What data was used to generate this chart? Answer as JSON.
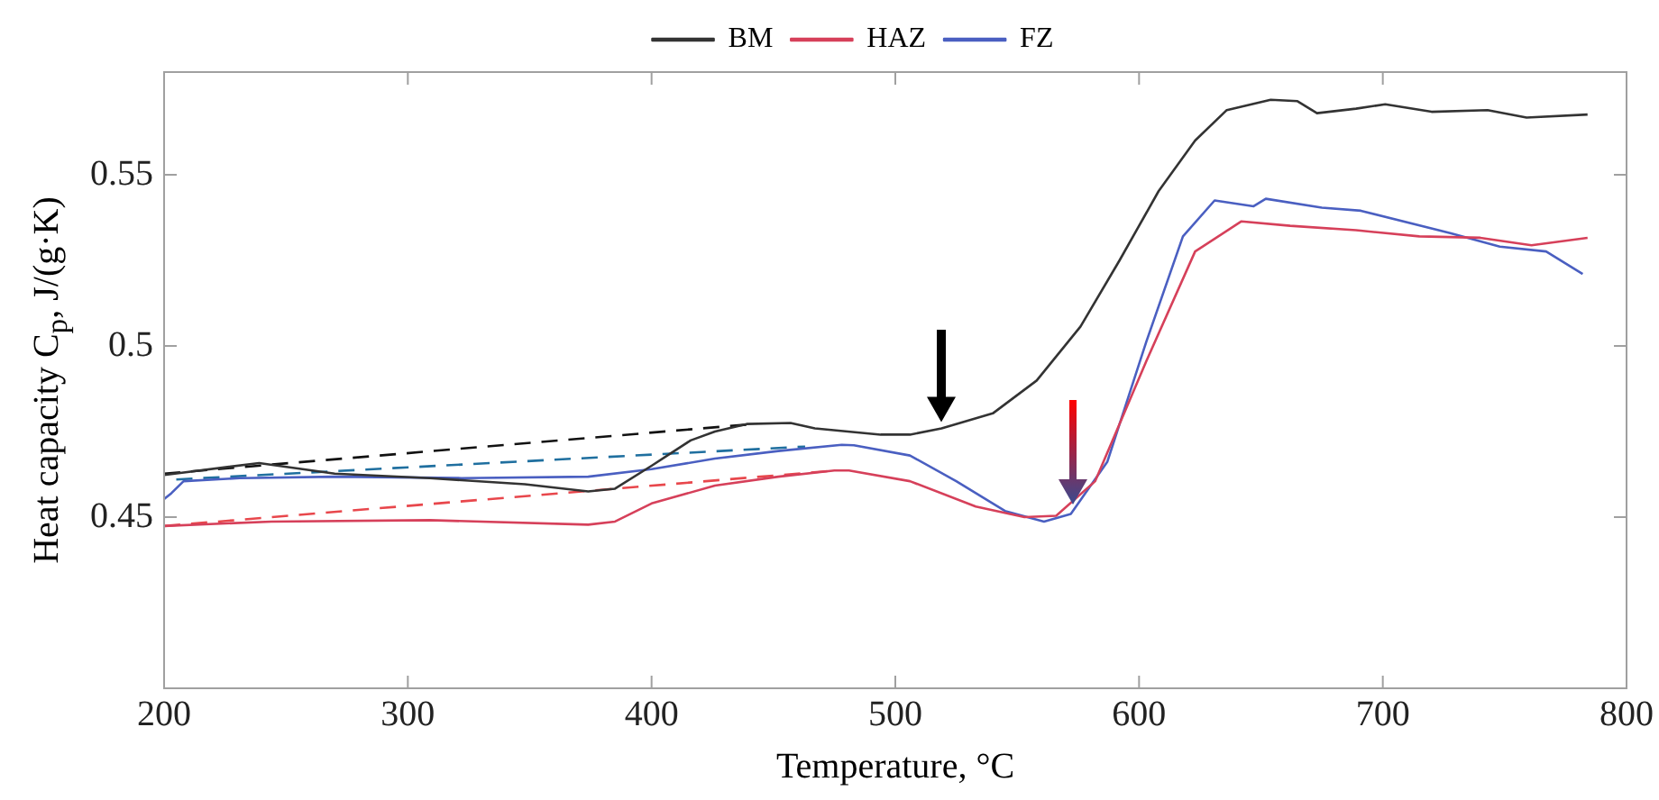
{
  "chart_data": {
    "type": "line",
    "xlabel": "Temperature, °C",
    "ylabel": "Heat capacity C$_{p}$, J/(g·K)",
    "xlim": [
      200,
      800
    ],
    "ylim": [
      0.4,
      0.58
    ],
    "xticks": [
      200,
      300,
      400,
      500,
      600,
      700,
      800
    ],
    "yticks": [
      0.45,
      0.5,
      0.55
    ],
    "grid": false,
    "legend": "top",
    "marker": "none",
    "series": [
      {
        "name": "BM",
        "color": "#333333",
        "line_style": "solid",
        "x": [
          200,
          239,
          270,
          309,
          348,
          374,
          385,
          400,
          416,
          426,
          439,
          457,
          467,
          494,
          506,
          519,
          540,
          558,
          576,
          592,
          608,
          623,
          636,
          654,
          665,
          673,
          689,
          701,
          720,
          743,
          759,
          784
        ],
        "values": [
          0.4623,
          0.4658,
          0.4627,
          0.4614,
          0.4596,
          0.4575,
          0.4583,
          0.465,
          0.4724,
          0.475,
          0.4772,
          0.4775,
          0.4759,
          0.4741,
          0.4741,
          0.4759,
          0.4803,
          0.4899,
          0.5057,
          0.525,
          0.5452,
          0.56,
          0.5689,
          0.5719,
          0.5715,
          0.568,
          0.5693,
          0.5706,
          0.5684,
          0.5689,
          0.5667,
          0.5676
        ]
      },
      {
        "name": "HAZ",
        "color": "#d6405a",
        "line_style": "solid",
        "x": [
          200,
          244,
          309,
          374,
          385,
          400,
          426,
          452,
          475,
          481,
          506,
          533,
          553,
          566,
          582,
          603,
          623,
          642,
          662,
          689,
          715,
          740,
          761,
          784
        ],
        "values": [
          0.4474,
          0.4487,
          0.4491,
          0.4478,
          0.4487,
          0.454,
          0.4592,
          0.4618,
          0.4636,
          0.4636,
          0.4605,
          0.4531,
          0.45,
          0.4504,
          0.4605,
          0.4956,
          0.5276,
          0.5364,
          0.5351,
          0.5338,
          0.532,
          0.5316,
          0.5294,
          0.5316
        ]
      },
      {
        "name": "FZ",
        "color": "#4a5fc1",
        "line_style": "solid",
        "x": [
          200,
          203,
          208,
          231,
          270,
          322,
          374,
          400,
          426,
          452,
          478,
          483,
          506,
          525,
          545,
          561,
          572,
          587,
          603,
          618,
          631,
          647,
          652,
          675,
          691,
          728,
          748,
          767,
          782
        ],
        "values": [
          0.4553,
          0.457,
          0.4605,
          0.4614,
          0.4618,
          0.4614,
          0.4618,
          0.464,
          0.4671,
          0.4693,
          0.4711,
          0.471,
          0.468,
          0.4605,
          0.4518,
          0.4487,
          0.4509,
          0.4662,
          0.5013,
          0.532,
          0.5425,
          0.5408,
          0.543,
          0.5404,
          0.5395,
          0.5329,
          0.529,
          0.5276,
          0.521
        ]
      },
      {
        "color": "#111111",
        "line_style": "dashed",
        "x": [
          200,
          442
        ],
        "values": [
          0.4627,
          0.4772
        ]
      },
      {
        "color": "#1f6f9f",
        "line_style": "dashed",
        "x": [
          205,
          463
        ],
        "values": [
          0.461,
          0.4706
        ]
      },
      {
        "color": "#e8474c",
        "line_style": "dashed",
        "x": [
          200,
          475
        ],
        "values": [
          0.4474,
          0.4636
        ]
      }
    ]
  }
}
